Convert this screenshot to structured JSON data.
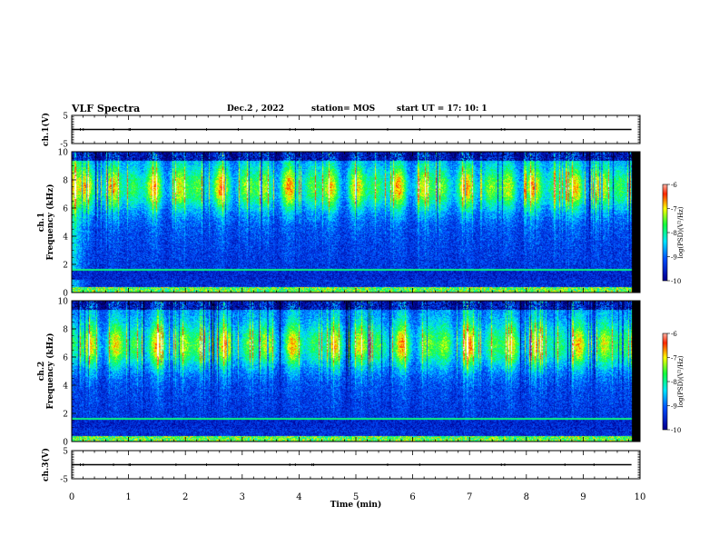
{
  "header": {
    "title": "VLF Spectra",
    "date": "Dec.2 , 2022",
    "station": "station= MOS",
    "start": "start UT = 17: 10: 1"
  },
  "chart_data": [
    {
      "type": "line",
      "panel": "ch1-voltage",
      "ylabel": "ch.1(V)",
      "ylim": [
        -5,
        5
      ],
      "yticks": [
        "5",
        "-5"
      ],
      "x": [
        0,
        9.85
      ],
      "y": [
        0,
        0
      ]
    },
    {
      "type": "heatmap",
      "panel": "ch1-spectrogram",
      "ylabel": "ch.1\nFrequency (kHz)",
      "ylim": [
        0,
        10
      ],
      "yticks": [
        "0",
        "2",
        "4",
        "6",
        "8",
        "10"
      ],
      "xlim": [
        0,
        10
      ],
      "data_end_min": 9.85,
      "colorbar": {
        "label": "log(PSD)(V²/Hz)",
        "range": [
          -10,
          -6
        ],
        "ticks": [
          "-6",
          "-7",
          "-8",
          "-9",
          "-10"
        ]
      },
      "profile": {
        "cutoff_khz": 1.6,
        "band_center_khz": 7.4,
        "band_width_khz": 1.6,
        "early_enhancement_min": 0.3
      }
    },
    {
      "type": "heatmap",
      "panel": "ch2-spectrogram",
      "ylabel": "ch.2\nFrequency (kHz)",
      "ylim": [
        0,
        10
      ],
      "yticks": [
        "0",
        "2",
        "4",
        "6",
        "8",
        "10"
      ],
      "xlim": [
        0,
        10
      ],
      "data_end_min": 9.85,
      "colorbar": {
        "label": "log(PSD)(V²/Hz)",
        "range": [
          -10,
          -6
        ],
        "ticks": [
          "-6",
          "-7",
          "-8",
          "-9",
          "-10"
        ]
      },
      "profile": {
        "cutoff_khz": 1.6,
        "band_center_khz": 6.8,
        "band_width_khz": 1.6,
        "early_enhancement_min": 0
      }
    },
    {
      "type": "line",
      "panel": "ch3-voltage",
      "ylabel": "ch.3(V)",
      "ylim": [
        -5,
        5
      ],
      "yticks": [
        "5",
        "-5"
      ],
      "x": [
        0,
        9.85
      ],
      "y": [
        0,
        0
      ]
    }
  ],
  "x_axis": {
    "label": "Time (min)",
    "ticks": [
      "0",
      "1",
      "2",
      "3",
      "4",
      "5",
      "6",
      "7",
      "8",
      "9",
      "10"
    ]
  },
  "colors": {
    "background": "#ffffff",
    "axes": "#000000",
    "colormap": [
      "#000000",
      "#0000ff",
      "#00ffff",
      "#00ff00",
      "#ffff00",
      "#ff0000",
      "#ffffff"
    ]
  }
}
